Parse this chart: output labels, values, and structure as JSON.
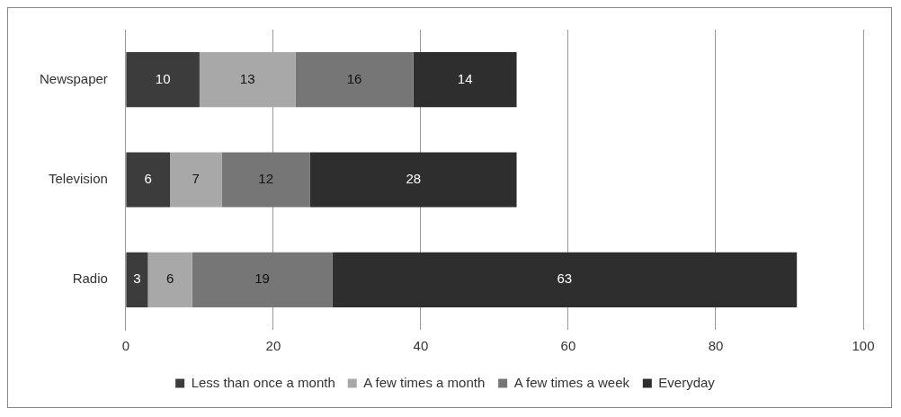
{
  "chart_data": {
    "type": "bar",
    "orientation": "horizontal",
    "stacked": true,
    "categories": [
      "Newspaper",
      "Television",
      "Radio"
    ],
    "series": [
      {
        "name": "Less than once a month",
        "color": "#3c3c3c",
        "values": [
          10,
          6,
          3
        ]
      },
      {
        "name": "A few times a month",
        "color": "#a8a8a8",
        "values": [
          13,
          7,
          6
        ]
      },
      {
        "name": "A few times a week",
        "color": "#767676",
        "values": [
          16,
          12,
          19
        ]
      },
      {
        "name": "Everyday",
        "color": "#2e2e2e",
        "values": [
          14,
          28,
          63
        ]
      }
    ],
    "xlim": [
      0,
      100
    ],
    "xticks": [
      0,
      20,
      40,
      60,
      80,
      100
    ],
    "grid": "x",
    "legend": "bottom",
    "data_labels": true
  }
}
